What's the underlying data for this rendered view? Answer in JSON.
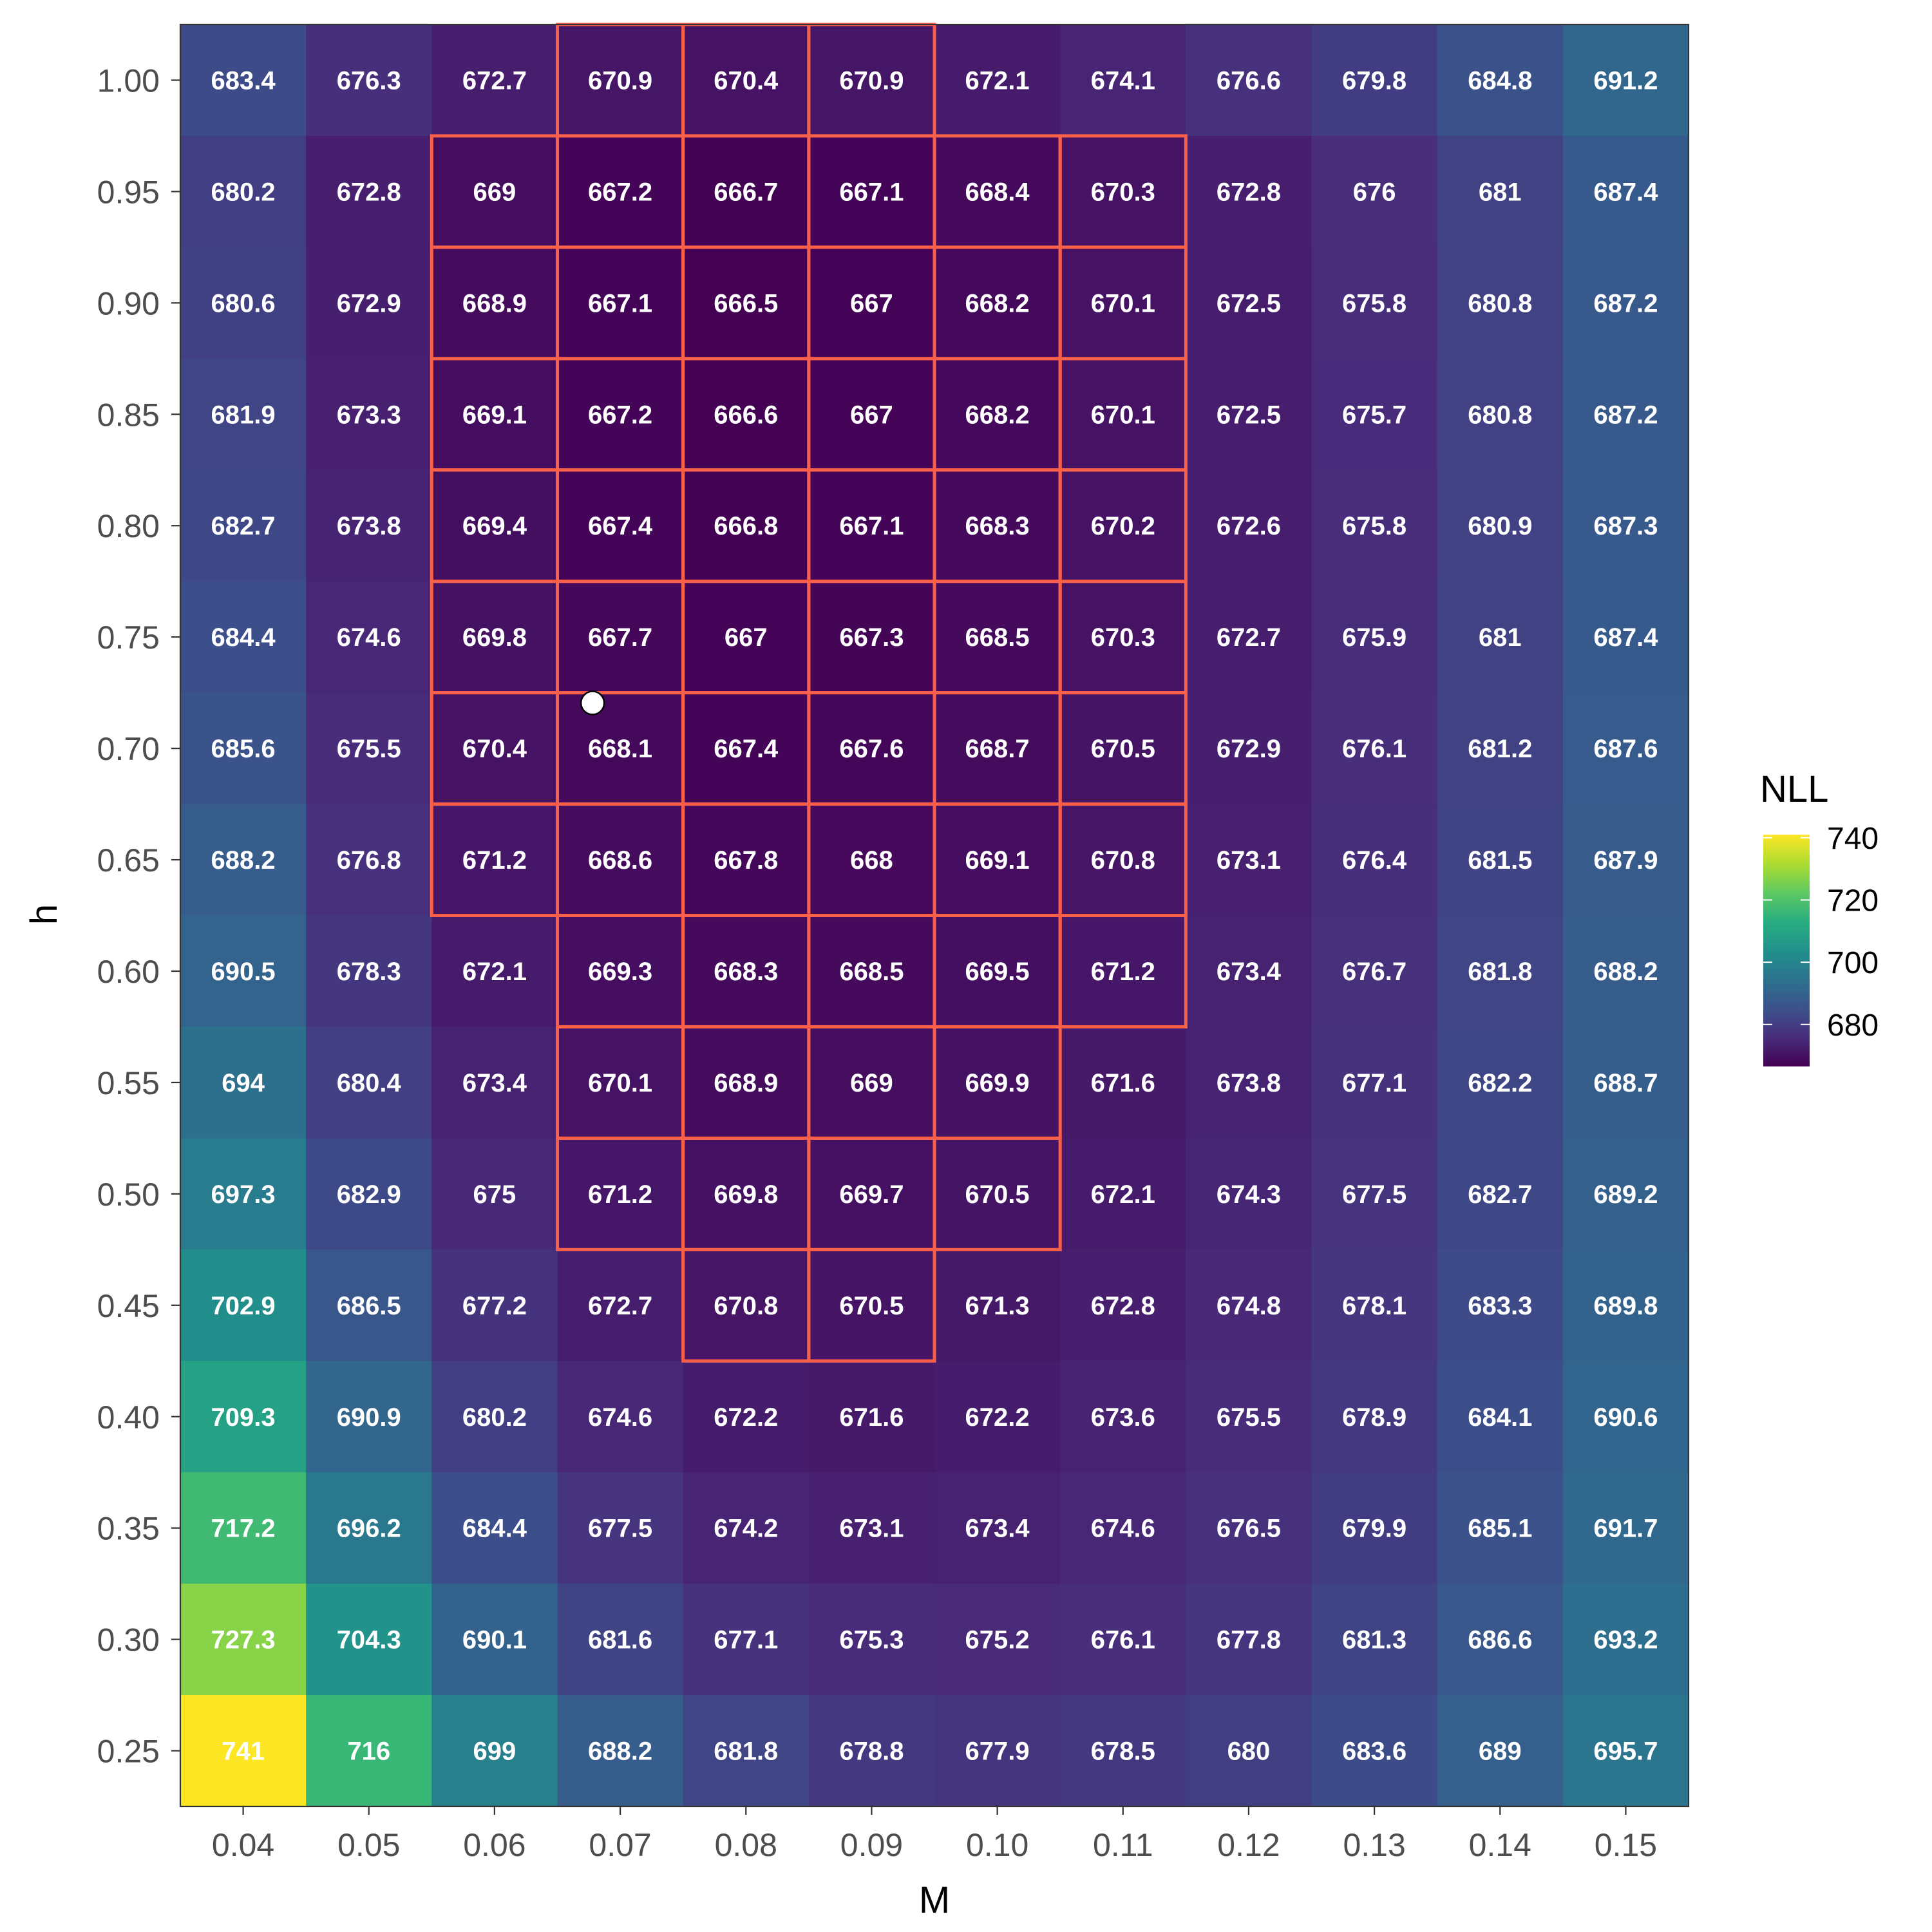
{
  "chart_data": {
    "type": "heatmap",
    "xlabel": "M",
    "ylabel": "h",
    "x": [
      0.04,
      0.05,
      0.06,
      0.07,
      0.08,
      0.09,
      0.1,
      0.11,
      0.12,
      0.13,
      0.14,
      0.15
    ],
    "x_tick_labels": [
      "0.04",
      "0.05",
      "0.06",
      "0.07",
      "0.08",
      "0.09",
      "0.10",
      "0.11",
      "0.12",
      "0.13",
      "0.14",
      "0.15"
    ],
    "y": [
      1.0,
      0.95,
      0.9,
      0.85,
      0.8,
      0.75,
      0.7,
      0.65,
      0.6,
      0.55,
      0.5,
      0.45,
      0.4,
      0.35,
      0.3,
      0.25
    ],
    "y_tick_labels": [
      "1.00",
      "0.95",
      "0.90",
      "0.85",
      "0.80",
      "0.75",
      "0.70",
      "0.65",
      "0.60",
      "0.55",
      "0.50",
      "0.45",
      "0.40",
      "0.35",
      "0.30",
      "0.25"
    ],
    "values": [
      [
        "683.4",
        "676.3",
        "672.7",
        "670.9",
        "670.4",
        "670.9",
        "672.1",
        "674.1",
        "676.6",
        "679.8",
        "684.8",
        "691.2"
      ],
      [
        "680.2",
        "672.8",
        "669",
        "667.2",
        "666.7",
        "667.1",
        "668.4",
        "670.3",
        "672.8",
        "676",
        "681",
        "687.4"
      ],
      [
        "680.6",
        "672.9",
        "668.9",
        "667.1",
        "666.5",
        "667",
        "668.2",
        "670.1",
        "672.5",
        "675.8",
        "680.8",
        "687.2"
      ],
      [
        "681.9",
        "673.3",
        "669.1",
        "667.2",
        "666.6",
        "667",
        "668.2",
        "670.1",
        "672.5",
        "675.7",
        "680.8",
        "687.2"
      ],
      [
        "682.7",
        "673.8",
        "669.4",
        "667.4",
        "666.8",
        "667.1",
        "668.3",
        "670.2",
        "672.6",
        "675.8",
        "680.9",
        "687.3"
      ],
      [
        "684.4",
        "674.6",
        "669.8",
        "667.7",
        "667",
        "667.3",
        "668.5",
        "670.3",
        "672.7",
        "675.9",
        "681",
        "687.4"
      ],
      [
        "685.6",
        "675.5",
        "670.4",
        "668.1",
        "667.4",
        "667.6",
        "668.7",
        "670.5",
        "672.9",
        "676.1",
        "681.2",
        "687.6"
      ],
      [
        "688.2",
        "676.8",
        "671.2",
        "668.6",
        "667.8",
        "668",
        "669.1",
        "670.8",
        "673.1",
        "676.4",
        "681.5",
        "687.9"
      ],
      [
        "690.5",
        "678.3",
        "672.1",
        "669.3",
        "668.3",
        "668.5",
        "669.5",
        "671.2",
        "673.4",
        "676.7",
        "681.8",
        "688.2"
      ],
      [
        "694",
        "680.4",
        "673.4",
        "670.1",
        "668.9",
        "669",
        "669.9",
        "671.6",
        "673.8",
        "677.1",
        "682.2",
        "688.7"
      ],
      [
        "697.3",
        "682.9",
        "675",
        "671.2",
        "669.8",
        "669.7",
        "670.5",
        "672.1",
        "674.3",
        "677.5",
        "682.7",
        "689.2"
      ],
      [
        "702.9",
        "686.5",
        "677.2",
        "672.7",
        "670.8",
        "670.5",
        "671.3",
        "672.8",
        "674.8",
        "678.1",
        "683.3",
        "689.8"
      ],
      [
        "709.3",
        "690.9",
        "680.2",
        "674.6",
        "672.2",
        "671.6",
        "672.2",
        "673.6",
        "675.5",
        "678.9",
        "684.1",
        "690.6"
      ],
      [
        "717.2",
        "696.2",
        "684.4",
        "677.5",
        "674.2",
        "673.1",
        "673.4",
        "674.6",
        "676.5",
        "679.9",
        "685.1",
        "691.7"
      ],
      [
        "727.3",
        "704.3",
        "690.1",
        "681.6",
        "677.1",
        "675.3",
        "675.2",
        "676.1",
        "677.8",
        "681.3",
        "686.6",
        "693.2"
      ],
      [
        "741",
        "716",
        "699",
        "688.2",
        "681.8",
        "678.8",
        "677.9",
        "678.5",
        "680",
        "683.6",
        "689",
        "695.7"
      ]
    ],
    "highlighted_cells": [
      {
        "M": 0.07,
        "h": 1.0
      },
      {
        "M": 0.08,
        "h": 1.0
      },
      {
        "M": 0.09,
        "h": 1.0
      },
      {
        "M": 0.06,
        "h": 0.95
      },
      {
        "M": 0.07,
        "h": 0.95
      },
      {
        "M": 0.08,
        "h": 0.95
      },
      {
        "M": 0.09,
        "h": 0.95
      },
      {
        "M": 0.1,
        "h": 0.95
      },
      {
        "M": 0.11,
        "h": 0.95
      },
      {
        "M": 0.06,
        "h": 0.9
      },
      {
        "M": 0.07,
        "h": 0.9
      },
      {
        "M": 0.08,
        "h": 0.9
      },
      {
        "M": 0.09,
        "h": 0.9
      },
      {
        "M": 0.1,
        "h": 0.9
      },
      {
        "M": 0.11,
        "h": 0.9
      },
      {
        "M": 0.06,
        "h": 0.85
      },
      {
        "M": 0.07,
        "h": 0.85
      },
      {
        "M": 0.08,
        "h": 0.85
      },
      {
        "M": 0.09,
        "h": 0.85
      },
      {
        "M": 0.1,
        "h": 0.85
      },
      {
        "M": 0.11,
        "h": 0.85
      },
      {
        "M": 0.06,
        "h": 0.8
      },
      {
        "M": 0.07,
        "h": 0.8
      },
      {
        "M": 0.08,
        "h": 0.8
      },
      {
        "M": 0.09,
        "h": 0.8
      },
      {
        "M": 0.1,
        "h": 0.8
      },
      {
        "M": 0.11,
        "h": 0.8
      },
      {
        "M": 0.06,
        "h": 0.75
      },
      {
        "M": 0.07,
        "h": 0.75
      },
      {
        "M": 0.08,
        "h": 0.75
      },
      {
        "M": 0.09,
        "h": 0.75
      },
      {
        "M": 0.1,
        "h": 0.75
      },
      {
        "M": 0.11,
        "h": 0.75
      },
      {
        "M": 0.06,
        "h": 0.7
      },
      {
        "M": 0.07,
        "h": 0.7
      },
      {
        "M": 0.08,
        "h": 0.7
      },
      {
        "M": 0.09,
        "h": 0.7
      },
      {
        "M": 0.1,
        "h": 0.7
      },
      {
        "M": 0.11,
        "h": 0.7
      },
      {
        "M": 0.06,
        "h": 0.65
      },
      {
        "M": 0.07,
        "h": 0.65
      },
      {
        "M": 0.08,
        "h": 0.65
      },
      {
        "M": 0.09,
        "h": 0.65
      },
      {
        "M": 0.1,
        "h": 0.65
      },
      {
        "M": 0.11,
        "h": 0.65
      },
      {
        "M": 0.07,
        "h": 0.6
      },
      {
        "M": 0.08,
        "h": 0.6
      },
      {
        "M": 0.09,
        "h": 0.6
      },
      {
        "M": 0.1,
        "h": 0.6
      },
      {
        "M": 0.11,
        "h": 0.6
      },
      {
        "M": 0.07,
        "h": 0.55
      },
      {
        "M": 0.08,
        "h": 0.55
      },
      {
        "M": 0.09,
        "h": 0.55
      },
      {
        "M": 0.1,
        "h": 0.55
      },
      {
        "M": 0.07,
        "h": 0.5
      },
      {
        "M": 0.08,
        "h": 0.5
      },
      {
        "M": 0.09,
        "h": 0.5
      },
      {
        "M": 0.1,
        "h": 0.5
      },
      {
        "M": 0.08,
        "h": 0.45
      },
      {
        "M": 0.09,
        "h": 0.45
      }
    ],
    "highlight_color": "#f8604a",
    "point": {
      "M": 0.0678,
      "h": 0.7204
    },
    "legend": {
      "title": "NLL",
      "ticks": [
        740,
        720,
        700,
        680
      ],
      "range": [
        666.5,
        741
      ],
      "colormap": "viridis",
      "placement": "right"
    },
    "grid": false
  }
}
